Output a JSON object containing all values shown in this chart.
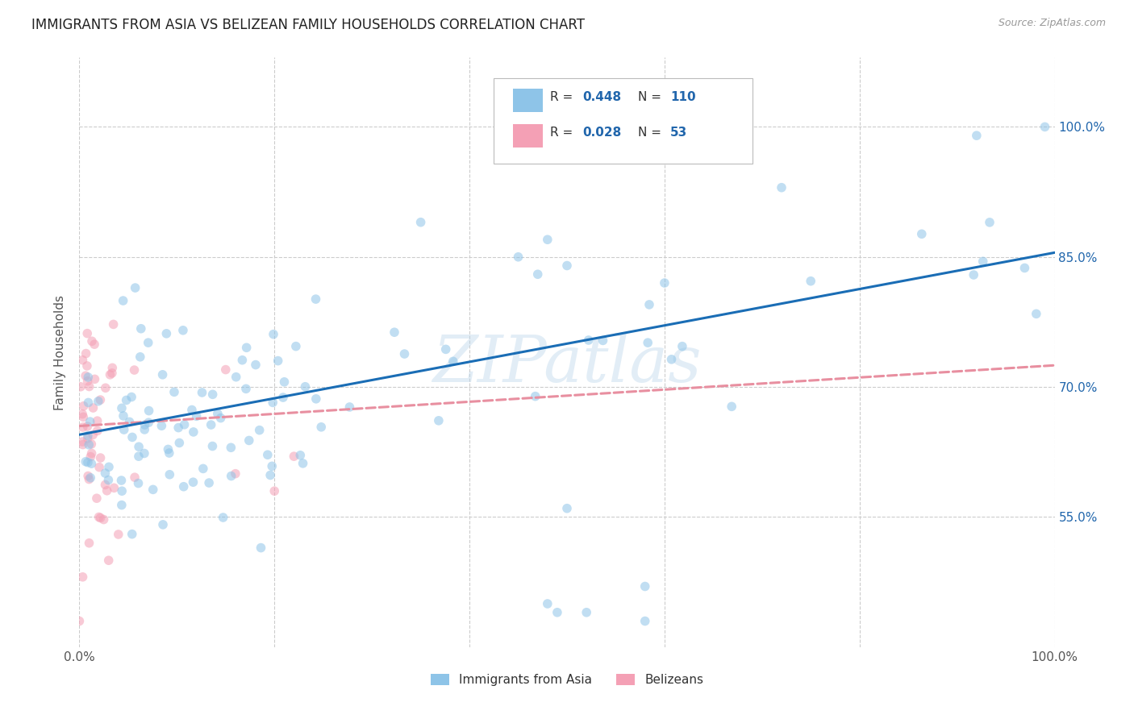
{
  "title": "IMMIGRANTS FROM ASIA VS BELIZEAN FAMILY HOUSEHOLDS CORRELATION CHART",
  "source": "Source: ZipAtlas.com",
  "ylabel": "Family Households",
  "legend_r_blue": "R = 0.448",
  "legend_n_blue": "N = 110",
  "legend_r_pink": "R = 0.028",
  "legend_n_pink": "N =  53",
  "blue_color": "#8ec4e8",
  "pink_color": "#f4a0b5",
  "blue_line_color": "#1a6db5",
  "pink_line_color": "#e88fa0",
  "watermark": "ZIPatlas",
  "background_color": "#ffffff",
  "xlim": [
    0.0,
    1.0
  ],
  "ylim": [
    0.4,
    1.08
  ],
  "grid_color": "#cccccc",
  "title_fontsize": 12,
  "label_fontsize": 11,
  "tick_fontsize": 11,
  "dot_size": 70,
  "dot_alpha": 0.55,
  "line_width": 2.2,
  "blue_line_start_y": 0.645,
  "blue_line_end_y": 0.855,
  "pink_line_start_y": 0.655,
  "pink_line_end_y": 0.725
}
